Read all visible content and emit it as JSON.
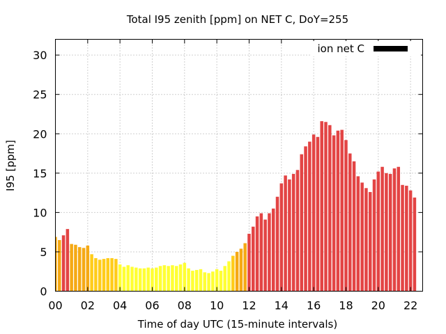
{
  "chart_data": {
    "type": "bar",
    "title": "Total I95 zenith [ppm] on NET C, DoY=255",
    "xlabel": "Time of day UTC (15-minute intervals)",
    "ylabel": "I95 [ppm]",
    "legend": {
      "label": "ion net C",
      "color": "#000000",
      "position": "top-right"
    },
    "grid": true,
    "xlim": [
      0,
      22.75
    ],
    "ylim": [
      0,
      32
    ],
    "xticks": [
      "00",
      "02",
      "04",
      "06",
      "08",
      "10",
      "12",
      "14",
      "16",
      "18",
      "20",
      "22"
    ],
    "yticks": [
      0,
      5,
      10,
      15,
      20,
      25,
      30
    ],
    "interval_hours": 0.25,
    "color_classes": [
      {
        "min": 0,
        "max": 3,
        "color": "#ffff33"
      },
      {
        "min": 3,
        "max": 4,
        "color": "#ffff33"
      },
      {
        "min": 4,
        "max": 5,
        "color": "#ffcc1a"
      },
      {
        "min": 5,
        "max": 7,
        "color": "#f5a914"
      },
      {
        "min": 7,
        "max": 100,
        "color": "#e34444"
      }
    ],
    "values": [
      6.9,
      6.5,
      7.1,
      7.9,
      6.0,
      5.9,
      5.6,
      5.5,
      5.8,
      4.7,
      4.2,
      4.0,
      4.1,
      4.2,
      4.2,
      4.1,
      3.4,
      3.1,
      3.3,
      3.1,
      3.0,
      2.9,
      2.9,
      3.0,
      2.9,
      3.0,
      3.2,
      3.3,
      3.2,
      3.3,
      3.2,
      3.4,
      3.6,
      2.9,
      2.6,
      2.7,
      2.8,
      2.4,
      2.3,
      2.5,
      2.8,
      2.6,
      3.2,
      3.8,
      4.5,
      5.0,
      5.4,
      6.1,
      7.3,
      8.2,
      9.5,
      9.9,
      9.1,
      9.9,
      10.5,
      12.0,
      13.7,
      14.7,
      14.2,
      14.9,
      15.4,
      17.4,
      18.4,
      19.0,
      19.9,
      19.6,
      21.6,
      21.5,
      21.1,
      19.8,
      20.4,
      20.5,
      19.2,
      17.5,
      16.5,
      14.6,
      13.8,
      13.1,
      12.6,
      14.2,
      15.2,
      15.8,
      15.0,
      14.9,
      15.6,
      15.8,
      13.5,
      13.4,
      12.8,
      11.9
    ]
  }
}
